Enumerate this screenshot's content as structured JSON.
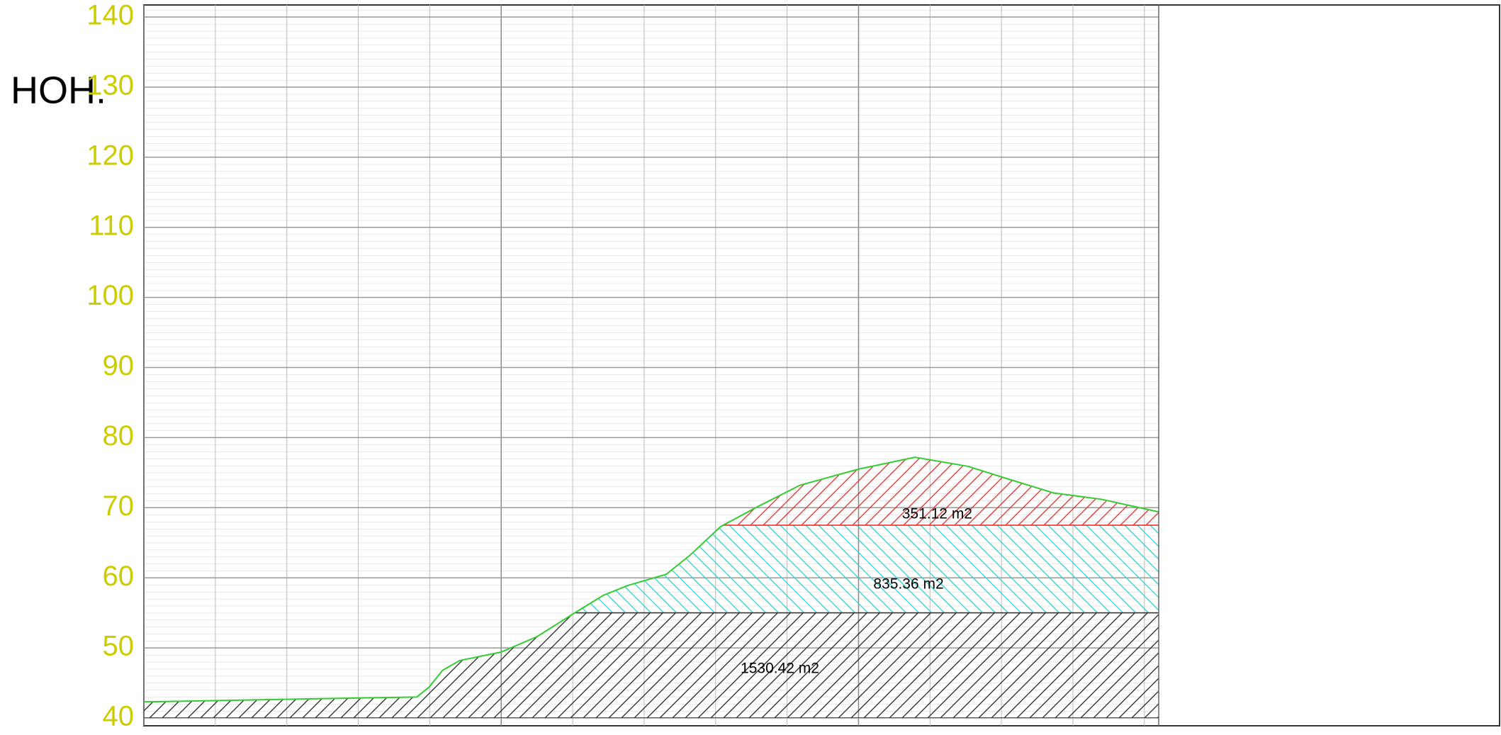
{
  "chart_data": {
    "type": "area",
    "y_label": "HOH.",
    "x": [
      0,
      38.2,
      39.9,
      41.8,
      44.2,
      50,
      55,
      60.3,
      64.3,
      67.7,
      73.1,
      76.4,
      80.7,
      85.8,
      91.8,
      100,
      107.9,
      115.3,
      120.6,
      127.3,
      134,
      142
    ],
    "series": [
      {
        "color": "#33cc33",
        "values": [
          42.3,
          43.0,
          44.4,
          46.8,
          48.2,
          49.4,
          51.6,
          55.0,
          57.5,
          58.9,
          60.5,
          63.2,
          67.3,
          70.1,
          73.2,
          75.5,
          77.2,
          75.9,
          74.2,
          72.1,
          71.2,
          69.4
        ]
      }
    ],
    "layers": [
      {
        "bottom": 40,
        "top": 55,
        "color": "#222222",
        "label": "1530.42 m2"
      },
      {
        "bottom": 55,
        "top": 67.5,
        "color": "#33cccc",
        "label": "835.36 m2"
      },
      {
        "bottom": 67.5,
        "top": 140,
        "color": "#ee2222",
        "label": "351.12 m2"
      }
    ],
    "xlim": [
      0,
      142
    ],
    "xticks": [
      0,
      10,
      20,
      30,
      40,
      50,
      60,
      70,
      80,
      90,
      100,
      110,
      120,
      130,
      140
    ],
    "ylim": [
      40,
      140
    ],
    "yticks": [
      40,
      50,
      60,
      70,
      80,
      90,
      100,
      110,
      120,
      130,
      140
    ],
    "grid": true
  }
}
